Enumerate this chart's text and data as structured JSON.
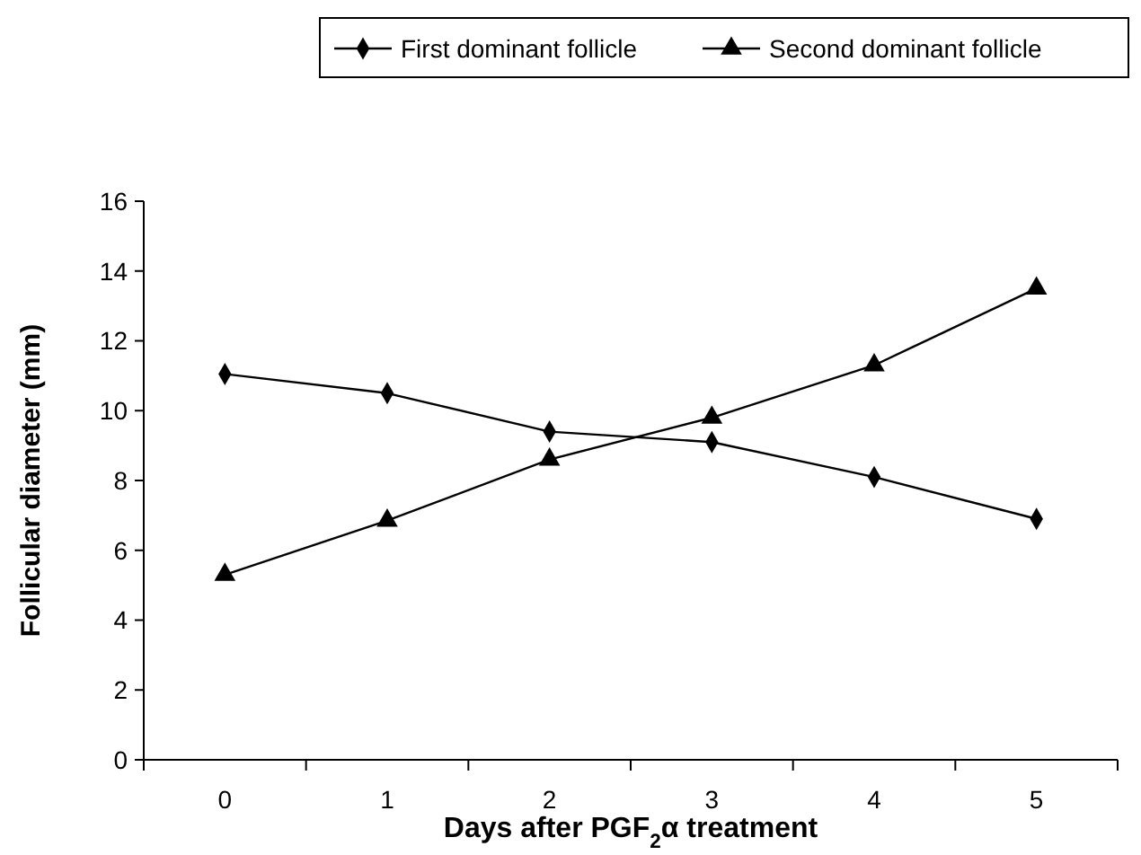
{
  "chart_data": {
    "type": "line",
    "xlabel": "Days after PGF$_{2}$α treatment",
    "ylabel": "Follicular diameter (mm)",
    "categories": [
      "0",
      "1",
      "2",
      "3",
      "4",
      "5"
    ],
    "ylim": [
      0,
      16
    ],
    "yticks": [
      0,
      2,
      4,
      6,
      8,
      10,
      12,
      14,
      16
    ],
    "legend": "top",
    "grid": false,
    "series": [
      {
        "name": "First dominant follicle",
        "color": "#000000",
        "marker": "diamond",
        "values": [
          11.05,
          10.5,
          9.4,
          9.1,
          8.1,
          6.9
        ]
      },
      {
        "name": "Second dominant follicle",
        "color": "#000000",
        "marker": "triangle",
        "values": [
          5.3,
          6.85,
          8.6,
          9.8,
          11.3,
          13.5
        ]
      }
    ]
  }
}
